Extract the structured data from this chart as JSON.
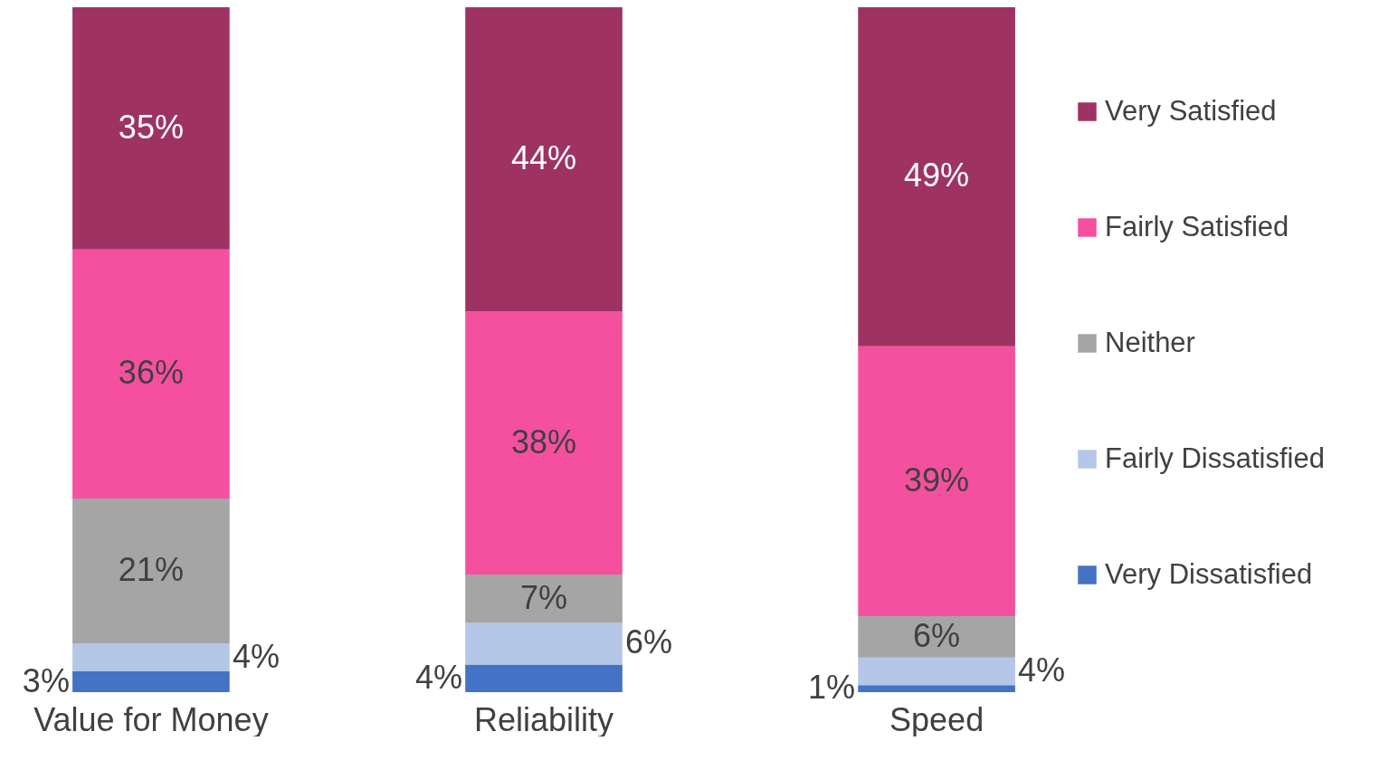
{
  "chart_data": {
    "type": "bar",
    "stacked": true,
    "legend": "right",
    "categories": [
      "Value for Money",
      "Reliability",
      "Speed"
    ],
    "series": [
      {
        "name": "Very Dissatisfied",
        "color": "#4472c4",
        "values": [
          3,
          4,
          1
        ],
        "value_labels": [
          "3%",
          "4%",
          "1%"
        ]
      },
      {
        "name": "Fairly Dissatisfied",
        "color": "#b4c7e7",
        "values": [
          4,
          6,
          4
        ],
        "value_labels": [
          "4%",
          "6%",
          "4%"
        ]
      },
      {
        "name": "Neither",
        "color": "#a5a5a5",
        "values": [
          21,
          7,
          6
        ],
        "value_labels": [
          "21%",
          "7%",
          "6%"
        ]
      },
      {
        "name": "Fairly Satisfied",
        "color": "#f550a0",
        "values": [
          36,
          38,
          39
        ],
        "value_labels": [
          "36%",
          "38%",
          "39%"
        ]
      },
      {
        "name": "Very Satisfied",
        "color": "#9e3363",
        "values": [
          35,
          44,
          49
        ],
        "value_labels": [
          "35%",
          "44%",
          "49%"
        ]
      }
    ]
  }
}
